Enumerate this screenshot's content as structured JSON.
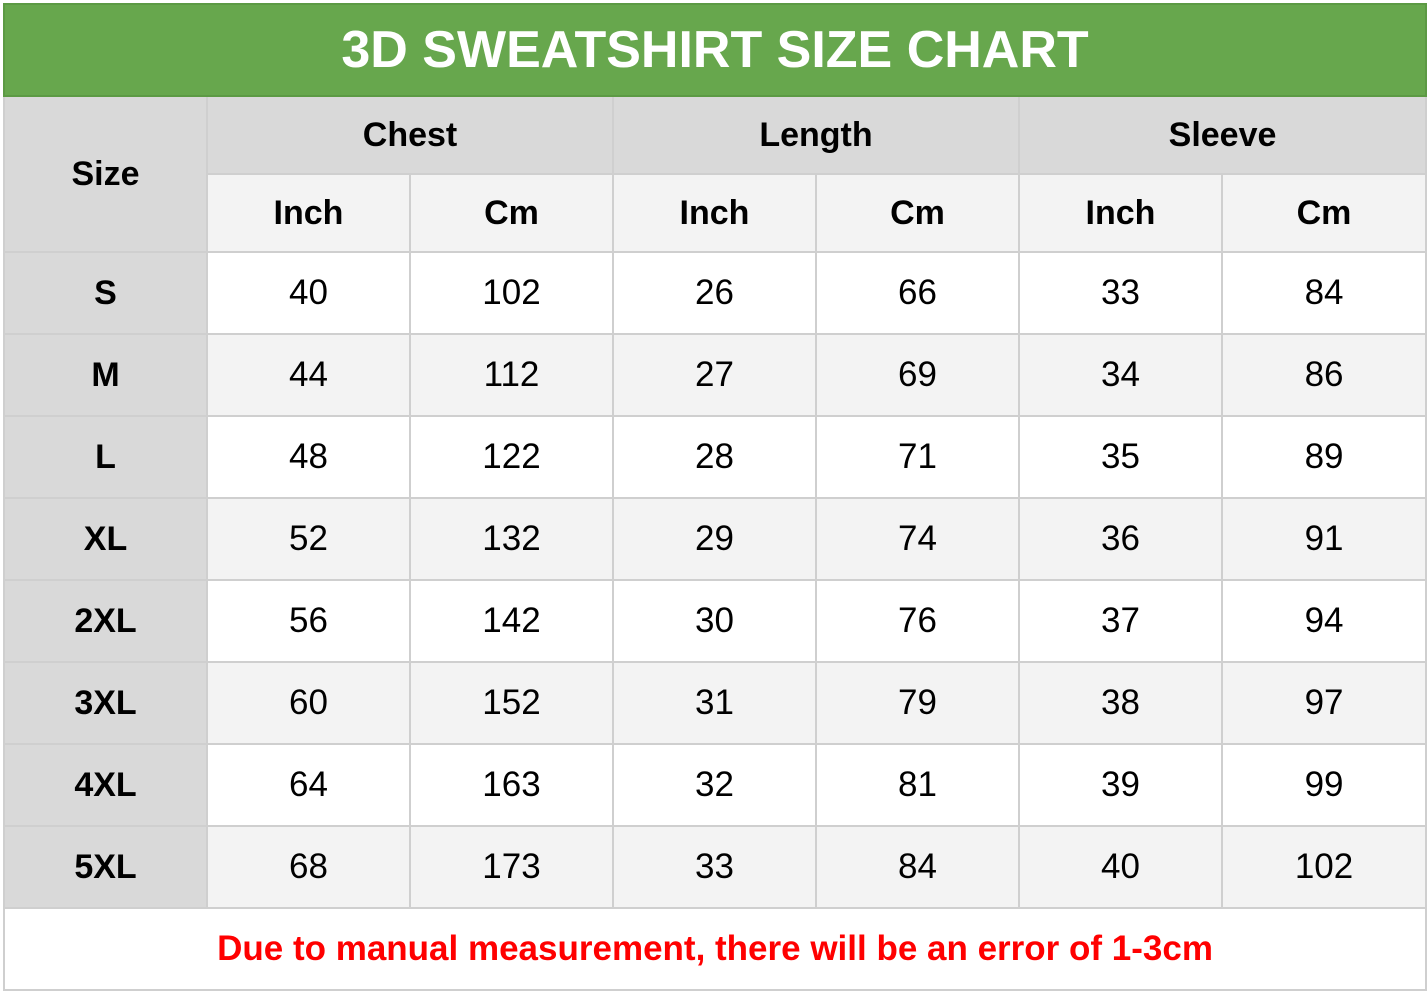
{
  "title": "3D SWEATSHIRT SIZE CHART",
  "header": {
    "size": "Size",
    "groups": [
      "Chest",
      "Length",
      "Sleeve"
    ],
    "units": [
      "Inch",
      "Cm",
      "Inch",
      "Cm",
      "Inch",
      "Cm"
    ]
  },
  "rows": [
    {
      "size": "S",
      "values": [
        "40",
        "102",
        "26",
        "66",
        "33",
        "84"
      ]
    },
    {
      "size": "M",
      "values": [
        "44",
        "112",
        "27",
        "69",
        "34",
        "86"
      ]
    },
    {
      "size": "L",
      "values": [
        "48",
        "122",
        "28",
        "71",
        "35",
        "89"
      ]
    },
    {
      "size": "XL",
      "values": [
        "52",
        "132",
        "29",
        "74",
        "36",
        "91"
      ]
    },
    {
      "size": "2XL",
      "values": [
        "56",
        "142",
        "30",
        "76",
        "37",
        "94"
      ]
    },
    {
      "size": "3XL",
      "values": [
        "60",
        "152",
        "31",
        "79",
        "38",
        "97"
      ]
    },
    {
      "size": "4XL",
      "values": [
        "64",
        "163",
        "32",
        "81",
        "39",
        "99"
      ]
    },
    {
      "size": "5XL",
      "values": [
        "68",
        "173",
        "33",
        "84",
        "40",
        "102"
      ]
    }
  ],
  "note": "Due to manual measurement, there will be an error of 1-3cm",
  "colors": {
    "title_bg": "#67a74d",
    "note_text": "#ff0000",
    "header_bg": "#d9d9d9",
    "alt_row_bg": "#f3f3f3"
  }
}
